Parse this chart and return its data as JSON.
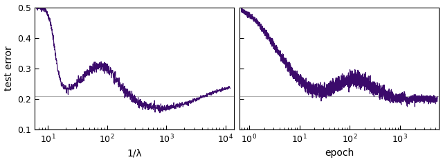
{
  "line_color": "#3b0a6b",
  "hline_color": "#b0b0b0",
  "hline_y": 0.21,
  "ylim": [
    0.1,
    0.5
  ],
  "yticks": [
    0.1,
    0.2,
    0.3,
    0.4,
    0.5
  ],
  "ylabel": "test error",
  "xlabel_left": "1/λ",
  "xlabel_right": "epoch",
  "xlim_left": [
    6,
    14000
  ],
  "xlim_right": [
    0.65,
    6000
  ],
  "background_color": "#ffffff",
  "line_width": 0.85
}
